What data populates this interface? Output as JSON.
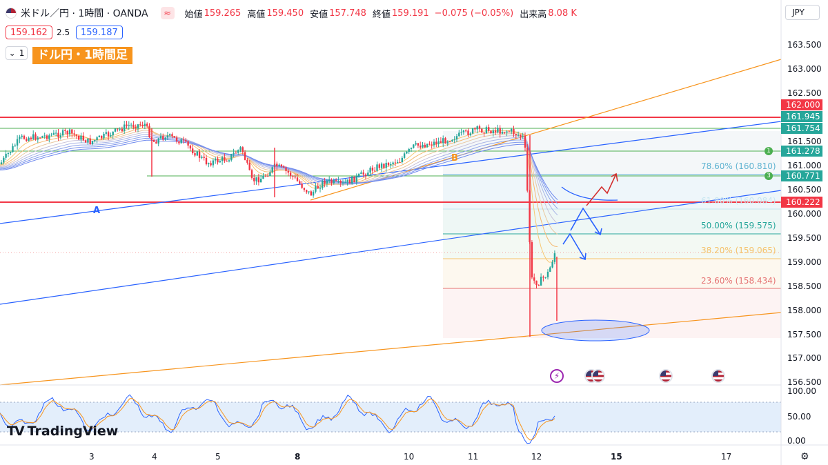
{
  "header": {
    "title": "米ドル／円 · 1時間 · OANDA",
    "open_label": "始値",
    "open": "159.265",
    "high_label": "高値",
    "high": "159.450",
    "low_label": "安値",
    "low": "157.748",
    "close_label": "終値",
    "close": "159.191",
    "change": "−0.075 (−0.05%)",
    "volume_label": "出来高",
    "volume": "8.08 K",
    "bid": "159.162",
    "spread": "2.5",
    "ask": "159.187",
    "collapse_count": "1",
    "chart_label": "ドル円・1時間足"
  },
  "currency": "JPY",
  "y_axis": [
    "163.500",
    "163.000",
    "162.500",
    "161.500",
    "161.000",
    "160.500",
    "160.000",
    "159.500",
    "159.000",
    "158.500",
    "158.000",
    "157.500",
    "157.000",
    "156.500"
  ],
  "price_tags": [
    {
      "value": "162.000",
      "color": "#f23645"
    },
    {
      "value": "161.945",
      "color": "#26a69a"
    },
    {
      "value": "161.754",
      "color": "#26a69a"
    },
    {
      "value": "161.278",
      "color": "#26a69a"
    },
    {
      "value": "160.771",
      "color": "#26a69a"
    },
    {
      "value": "160.222",
      "color": "#f23645"
    }
  ],
  "fib_levels": [
    {
      "label": "78.60% (160.810)",
      "color": "#5fb3d1"
    },
    {
      "label": "61.80% (160.084)",
      "color": "#c7e6f0"
    },
    {
      "label": "50.00% (159.575)",
      "color": "#26a69a"
    },
    {
      "label": "38.20% (159.065)",
      "color": "#f5c26b"
    },
    {
      "label": "23.60% (158.434)",
      "color": "#e57373"
    }
  ],
  "annotations": {
    "a": "A",
    "b": "B",
    "marker1": "1",
    "marker3": "3"
  },
  "rsi_axis": [
    "100.00",
    "50.00",
    "0.00"
  ],
  "x_axis": [
    "3",
    "4",
    "5",
    "8",
    "10",
    "11",
    "12",
    "15",
    "17"
  ],
  "brand": "TradingView",
  "colors": {
    "up": "#26a69a",
    "down": "#f23645",
    "orange": "#f7941d",
    "blue": "#2962ff"
  }
}
